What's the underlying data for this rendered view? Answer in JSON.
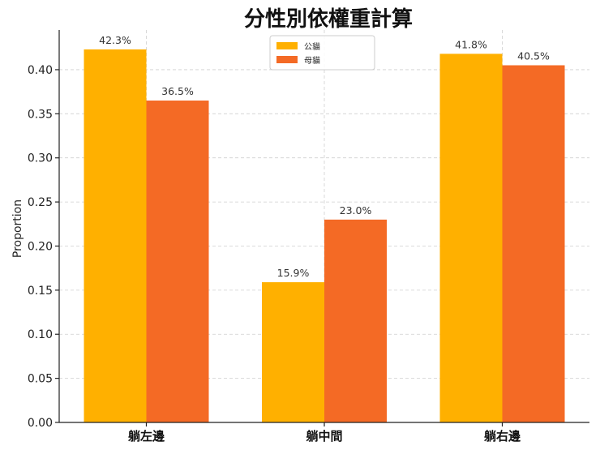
{
  "chart_data": {
    "type": "bar",
    "title": "分性別依權重計算",
    "ylabel": "Proportion",
    "xlabel": "",
    "categories": [
      "躺左邊",
      "躺中間",
      "躺右邊"
    ],
    "series": [
      {
        "name": "公貓",
        "color": "#FFB000",
        "values": [
          0.423,
          0.159,
          0.418
        ],
        "labels": [
          "42.3%",
          "15.9%",
          "41.8%"
        ]
      },
      {
        "name": "母貓",
        "color": "#F46A25",
        "values": [
          0.365,
          0.23,
          0.405
        ],
        "labels": [
          "36.5%",
          "23.0%",
          "40.5%"
        ]
      }
    ],
    "ylim": [
      0,
      0.445
    ],
    "yticks": [
      0.0,
      0.05,
      0.1,
      0.15,
      0.2,
      0.25,
      0.3,
      0.35,
      0.4
    ],
    "ytick_labels": [
      "0.00",
      "0.05",
      "0.10",
      "0.15",
      "0.20",
      "0.25",
      "0.30",
      "0.35",
      "0.40"
    ],
    "grid": true,
    "legend_position": "top-center"
  }
}
